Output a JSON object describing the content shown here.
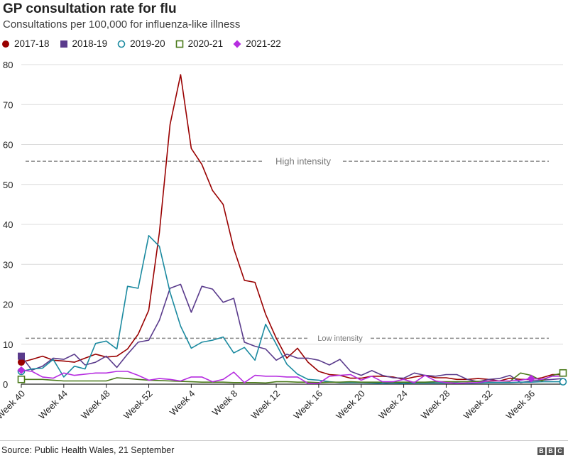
{
  "title": "GP consultation rate for flu",
  "subtitle": "Consultations per 100,000 for influenza-like illness",
  "source": "Source: Public Health Wales, 21 September",
  "logo": [
    "B",
    "B",
    "C"
  ],
  "chart_data": {
    "type": "line",
    "title": "GP consultation rate for flu",
    "subtitle": "Consultations per 100,000 for influenza-like illness",
    "xlabel": "",
    "ylabel": "",
    "ylim": [
      0,
      80
    ],
    "yticks": [
      0,
      10,
      20,
      30,
      40,
      50,
      60,
      70,
      80
    ],
    "weeks": [
      40,
      41,
      42,
      43,
      44,
      45,
      46,
      47,
      48,
      49,
      50,
      51,
      52,
      1,
      2,
      3,
      4,
      5,
      6,
      7,
      8,
      9,
      10,
      11,
      12,
      13,
      14,
      15,
      16,
      17,
      18,
      19,
      20,
      21,
      22,
      23,
      24,
      25,
      26,
      27,
      28,
      29,
      30,
      31,
      32,
      33,
      34,
      35,
      36,
      37,
      38,
      39
    ],
    "tick_labels": [
      {
        "index": 0,
        "label": "Week 40"
      },
      {
        "index": 4,
        "label": "Week 44"
      },
      {
        "index": 8,
        "label": "Week 48"
      },
      {
        "index": 12,
        "label": "Week 52"
      },
      {
        "index": 16,
        "label": "Week 4"
      },
      {
        "index": 20,
        "label": "Week 8"
      },
      {
        "index": 24,
        "label": "Week 12"
      },
      {
        "index": 28,
        "label": "Week 16"
      },
      {
        "index": 32,
        "label": "Week 20"
      },
      {
        "index": 36,
        "label": "Week 24"
      },
      {
        "index": 40,
        "label": "Week 28"
      },
      {
        "index": 44,
        "label": "Week 32"
      },
      {
        "index": 48,
        "label": "Week 36"
      }
    ],
    "thresholds": [
      {
        "label": "High intensity",
        "value": 55.8,
        "color": "#8a8a8a"
      },
      {
        "label": "Low intensity",
        "value": 11.5,
        "color": "#8a8a8a"
      }
    ],
    "legend_position": "top-left",
    "grid": "horizontal",
    "series": [
      {
        "name": "2017-18",
        "color": "#990000",
        "marker": "circle-filled",
        "values": [
          5.5,
          6.2,
          7.0,
          6.0,
          5.8,
          5.5,
          6.5,
          7.5,
          6.8,
          7.0,
          8.8,
          12.5,
          18.5,
          38.0,
          65.0,
          77.5,
          59.0,
          55.0,
          48.5,
          45.0,
          34.0,
          26.0,
          25.5,
          17.5,
          11.5,
          6.5,
          9.0,
          5.5,
          3.2,
          2.4,
          2.2,
          1.5,
          1.5,
          2.0,
          2.0,
          1.8,
          1.2,
          1.8,
          2.2,
          1.6,
          1.6,
          1.2,
          1.2,
          1.4,
          1.2,
          0.8,
          1.5,
          1.2,
          1.2,
          1.6,
          2.4,
          2.4
        ]
      },
      {
        "name": "2018-19",
        "color": "#5a3b8c",
        "marker": "square-filled",
        "values": [
          7.0,
          3.5,
          4.5,
          6.5,
          6.2,
          7.5,
          4.8,
          5.5,
          7.0,
          4.2,
          7.5,
          10.5,
          11.0,
          16.0,
          24.0,
          25.0,
          18.0,
          24.5,
          23.8,
          20.5,
          21.5,
          10.5,
          9.5,
          8.8,
          6.0,
          7.5,
          6.5,
          6.5,
          6.0,
          4.8,
          6.2,
          3.2,
          2.2,
          3.4,
          2.2,
          1.6,
          1.5,
          2.8,
          2.2,
          2.0,
          2.4,
          2.4,
          1.2,
          0.6,
          1.2,
          1.4,
          2.2,
          0.4,
          0.8,
          1.0,
          1.2,
          1.4
        ]
      },
      {
        "name": "2019-20",
        "color": "#1b8aa0",
        "marker": "circle-open",
        "values": [
          3.2,
          3.8,
          4.0,
          6.2,
          1.8,
          4.5,
          3.8,
          10.2,
          10.8,
          8.8,
          24.5,
          24.0,
          37.2,
          34.5,
          23.0,
          14.5,
          9.0,
          10.5,
          11.0,
          11.8,
          7.8,
          9.2,
          6.0,
          15.0,
          10.0,
          5.0,
          2.5,
          1.2,
          1.0,
          0.6,
          0.4,
          0.4,
          0.4,
          0.3,
          0.2,
          0.3,
          0.2,
          0.3,
          0.3,
          0.3,
          0.3,
          0.3,
          0.2,
          0.3,
          0.4,
          0.4,
          0.4,
          0.5,
          0.5,
          0.6,
          0.6,
          0.6
        ]
      },
      {
        "name": "2020-21",
        "color": "#4a7a1a",
        "marker": "square-open",
        "values": [
          1.2,
          1.2,
          1.2,
          1.0,
          0.8,
          0.8,
          0.8,
          0.8,
          0.8,
          1.6,
          1.4,
          1.2,
          1.0,
          0.9,
          0.8,
          0.7,
          0.6,
          0.5,
          0.5,
          0.5,
          0.4,
          0.4,
          0.4,
          0.3,
          0.6,
          0.6,
          0.5,
          0.5,
          0.4,
          0.5,
          0.5,
          0.6,
          0.5,
          0.5,
          0.5,
          0.5,
          0.5,
          0.5,
          0.5,
          0.6,
          0.6,
          0.6,
          0.6,
          0.7,
          0.7,
          0.8,
          0.7,
          2.8,
          2.2,
          0.8,
          2.2,
          2.8
        ]
      },
      {
        "name": "2021-22",
        "color": "#b62de0",
        "marker": "diamond-filled",
        "values": [
          3.5,
          3.2,
          1.8,
          1.5,
          2.8,
          2.2,
          2.5,
          2.8,
          2.8,
          3.2,
          3.2,
          2.2,
          1.0,
          1.4,
          1.2,
          0.8,
          1.8,
          1.8,
          0.6,
          1.2,
          3.0,
          0.4,
          2.2,
          2.0,
          2.0,
          1.8,
          1.8,
          0.2,
          0.2,
          2.0,
          2.2,
          2.4,
          1.0,
          2.0,
          0.6,
          0.6,
          1.2,
          0.4,
          2.2,
          0.8,
          0.4,
          0.2,
          0.3,
          0.4,
          0.8,
          0.8,
          0.8,
          1.0,
          1.4,
          1.2,
          2.0,
          2.0
        ]
      }
    ]
  }
}
